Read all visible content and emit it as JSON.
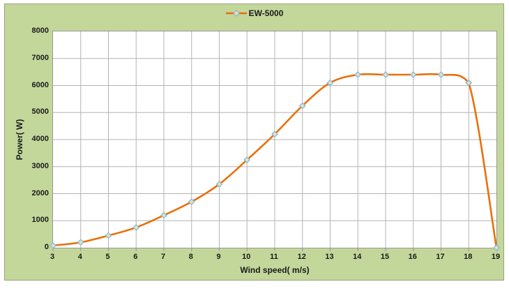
{
  "chart_data": {
    "type": "line",
    "smooth": true,
    "title": "",
    "series": [
      {
        "name": "EW-5000",
        "x": [
          3,
          4,
          5,
          6,
          7,
          8,
          9,
          10,
          11,
          12,
          13,
          14,
          15,
          16,
          17,
          18,
          19
        ],
        "values": [
          80,
          200,
          450,
          750,
          1200,
          1700,
          2350,
          3250,
          4200,
          5250,
          6100,
          6400,
          6400,
          6400,
          6400,
          6100,
          0
        ]
      }
    ],
    "xlabel": "Wind speed( m/s)",
    "ylabel": "Power( W)",
    "xlim": [
      3,
      19
    ],
    "ylim": [
      0,
      8000
    ],
    "x_ticks": [
      3,
      4,
      5,
      6,
      7,
      8,
      9,
      10,
      11,
      12,
      13,
      14,
      15,
      16,
      17,
      18,
      19
    ],
    "y_ticks": [
      0,
      1000,
      2000,
      3000,
      4000,
      5000,
      6000,
      7000,
      8000
    ],
    "grid": true,
    "legend_position": "top",
    "marker_shape": "diamond",
    "colors": {
      "series": "#e8700a",
      "marker_fill": "#dce6c6",
      "marker_border": "#92b1d6",
      "grid": "#b3b3b3",
      "axis": "#969696",
      "chart_background": "#c4d79b",
      "plot_background": "#ffffff",
      "chart_border": "#99a37b",
      "text": "#1a1a1a"
    }
  }
}
